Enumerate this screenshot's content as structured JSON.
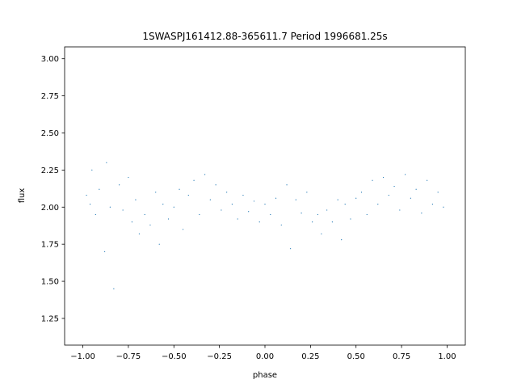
{
  "chart_data": {
    "type": "scatter",
    "title": "1SWASPJ161412.88-365611.7 Period 1996681.25s",
    "xlabel": "phase",
    "ylabel": "flux",
    "xlim": [
      -1.1,
      1.1
    ],
    "ylim": [
      1.07,
      3.08
    ],
    "xticks": [
      -1.0,
      -0.75,
      -0.5,
      -0.25,
      0.0,
      0.25,
      0.5,
      0.75,
      1.0
    ],
    "xtick_labels": [
      "−1.00",
      "−0.75",
      "−0.50",
      "−0.25",
      "0.00",
      "0.25",
      "0.50",
      "0.75",
      "1.00"
    ],
    "yticks": [
      1.25,
      1.5,
      1.75,
      2.0,
      2.25,
      2.5,
      2.75,
      3.0
    ],
    "ytick_labels": [
      "1.25",
      "1.50",
      "1.75",
      "2.00",
      "2.25",
      "2.50",
      "2.75",
      "3.00"
    ],
    "grid": false,
    "legend": "none",
    "marker_color": "#1f77b4",
    "series": [
      {
        "phase_range": [
          -1.0,
          1.0
        ],
        "points": [
          [
            -0.98,
            2.08
          ],
          [
            -0.96,
            2.02
          ],
          [
            -0.95,
            2.25
          ],
          [
            -0.93,
            1.95
          ],
          [
            -0.91,
            2.12
          ],
          [
            -0.88,
            1.7
          ],
          [
            -0.87,
            2.3
          ],
          [
            -0.85,
            2.0
          ],
          [
            -0.83,
            1.45
          ],
          [
            -0.8,
            2.15
          ],
          [
            -0.78,
            1.98
          ],
          [
            -0.75,
            2.2
          ],
          [
            -0.73,
            1.9
          ],
          [
            -0.71,
            2.05
          ],
          [
            -0.69,
            1.82
          ],
          [
            -0.66,
            1.95
          ],
          [
            -0.63,
            1.88
          ],
          [
            -0.6,
            2.1
          ],
          [
            -0.58,
            1.75
          ],
          [
            -0.56,
            2.02
          ],
          [
            -0.53,
            1.92
          ],
          [
            -0.5,
            2.0
          ],
          [
            -0.47,
            2.12
          ],
          [
            -0.45,
            1.85
          ],
          [
            -0.42,
            2.08
          ],
          [
            -0.39,
            2.18
          ],
          [
            -0.36,
            1.95
          ],
          [
            -0.33,
            2.22
          ],
          [
            -0.3,
            2.05
          ],
          [
            -0.27,
            2.15
          ],
          [
            -0.24,
            1.98
          ],
          [
            -0.21,
            2.1
          ],
          [
            -0.18,
            2.02
          ],
          [
            -0.15,
            1.92
          ],
          [
            -0.12,
            2.08
          ],
          [
            -0.09,
            1.97
          ],
          [
            -0.06,
            2.04
          ],
          [
            -0.03,
            1.9
          ],
          [
            0.0,
            2.02
          ],
          [
            0.03,
            1.95
          ],
          [
            0.06,
            2.06
          ],
          [
            0.09,
            1.88
          ],
          [
            0.12,
            2.15
          ],
          [
            0.14,
            1.72
          ],
          [
            0.17,
            2.05
          ],
          [
            0.2,
            1.96
          ],
          [
            0.23,
            2.1
          ],
          [
            0.26,
            1.9
          ],
          [
            0.29,
            1.95
          ],
          [
            0.31,
            1.82
          ],
          [
            0.34,
            1.98
          ],
          [
            0.37,
            1.9
          ],
          [
            0.4,
            2.05
          ],
          [
            0.42,
            1.78
          ],
          [
            0.44,
            2.02
          ],
          [
            0.47,
            1.92
          ],
          [
            0.5,
            2.06
          ],
          [
            0.53,
            2.1
          ],
          [
            0.56,
            1.95
          ],
          [
            0.59,
            2.18
          ],
          [
            0.62,
            2.02
          ],
          [
            0.65,
            2.2
          ],
          [
            0.68,
            2.08
          ],
          [
            0.71,
            2.14
          ],
          [
            0.74,
            1.98
          ],
          [
            0.77,
            2.22
          ],
          [
            0.8,
            2.06
          ],
          [
            0.83,
            2.12
          ],
          [
            0.86,
            1.96
          ],
          [
            0.89,
            2.18
          ],
          [
            0.92,
            2.02
          ],
          [
            0.95,
            2.1
          ],
          [
            0.98,
            2.0
          ]
        ]
      }
    ]
  }
}
